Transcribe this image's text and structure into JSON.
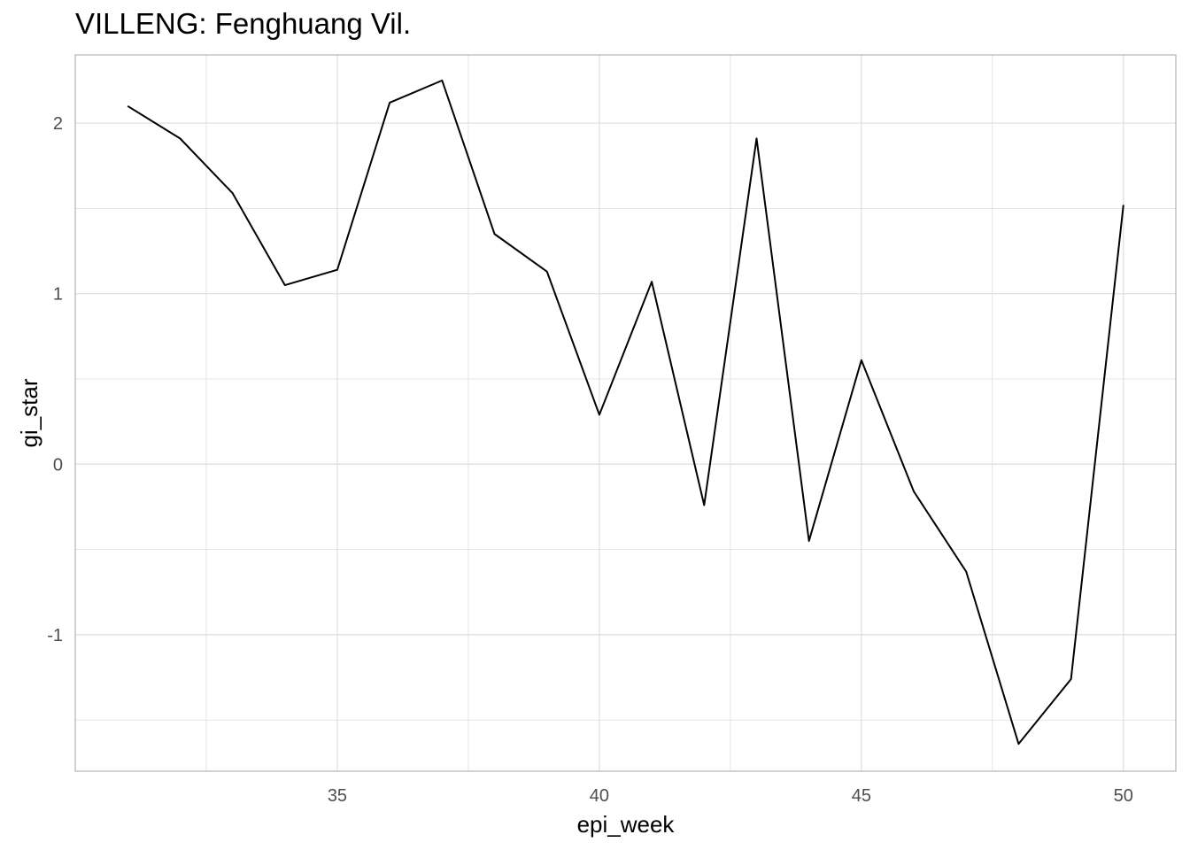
{
  "chart_data": {
    "type": "line",
    "title": "VILLENG: Fenghuang Vil.",
    "xlabel": "epi_week",
    "ylabel": "gi_star",
    "xlim": [
      30,
      51
    ],
    "ylim": [
      -1.8,
      2.4
    ],
    "x_ticks": [
      35,
      40,
      45,
      50
    ],
    "x_minor": [
      32.5,
      37.5,
      42.5,
      47.5
    ],
    "y_ticks": [
      -1,
      0,
      1,
      2
    ],
    "y_minor": [
      -1.5,
      -0.5,
      0.5,
      1.5
    ],
    "grid": true,
    "line_color": "#000000",
    "grid_color": "#dedede",
    "panel_border_color": "#b3b3b3",
    "series": [
      {
        "x": [
          31,
          32,
          33,
          34,
          35,
          36,
          37,
          38,
          39,
          40,
          41,
          42,
          43,
          44,
          45,
          46,
          47,
          48,
          49,
          50
        ],
        "values": [
          2.1,
          1.91,
          1.59,
          1.05,
          1.14,
          2.12,
          2.25,
          1.35,
          1.13,
          0.29,
          1.07,
          -0.24,
          1.91,
          -0.45,
          0.61,
          -0.16,
          -0.63,
          -1.64,
          -1.26,
          1.52
        ]
      }
    ]
  }
}
